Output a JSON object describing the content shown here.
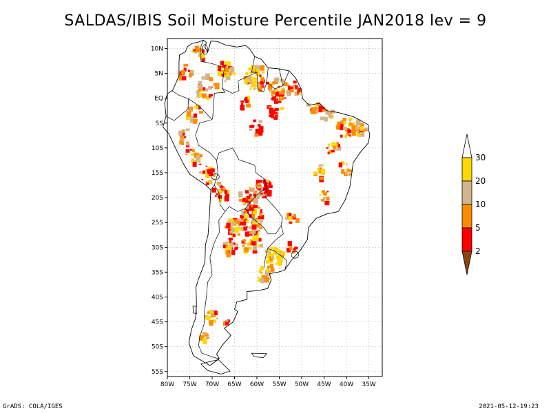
{
  "title": "SALDAS/IBIS Soil Moisture Percentile JAN2018 lev = 9",
  "footer": {
    "left": "GrADS: COLA/IGES",
    "right": "2021-05-12-19:23"
  },
  "map": {
    "lon_range": [
      -80,
      -32
    ],
    "lat_range": [
      -56,
      12
    ],
    "lon_ticks": [
      {
        "v": -80,
        "label": "80W"
      },
      {
        "v": -75,
        "label": "75W"
      },
      {
        "v": -70,
        "label": "70W"
      },
      {
        "v": -65,
        "label": "65W"
      },
      {
        "v": -60,
        "label": "60W"
      },
      {
        "v": -55,
        "label": "55W"
      },
      {
        "v": -50,
        "label": "50W"
      },
      {
        "v": -45,
        "label": "45W"
      },
      {
        "v": -40,
        "label": "40W"
      },
      {
        "v": -35,
        "label": "35W"
      }
    ],
    "lat_ticks": [
      {
        "v": 10,
        "label": "10N"
      },
      {
        "v": 5,
        "label": "5N"
      },
      {
        "v": 0,
        "label": "EQ"
      },
      {
        "v": -5,
        "label": "5S"
      },
      {
        "v": -10,
        "label": "10S"
      },
      {
        "v": -15,
        "label": "15S"
      },
      {
        "v": -20,
        "label": "20S"
      },
      {
        "v": -25,
        "label": "25S"
      },
      {
        "v": -30,
        "label": "30S"
      },
      {
        "v": -35,
        "label": "35S"
      },
      {
        "v": -40,
        "label": "40S"
      },
      {
        "v": -45,
        "label": "45S"
      },
      {
        "v": -50,
        "label": "50S"
      },
      {
        "v": -55,
        "label": "55S"
      }
    ],
    "grid": true,
    "coastline": [
      [
        -77.3,
        8.7
      ],
      [
        -76,
        9.3
      ],
      [
        -75.5,
        10.4
      ],
      [
        -74.5,
        11
      ],
      [
        -73,
        11.3
      ],
      [
        -71.9,
        11.7
      ],
      [
        -71.3,
        11.2
      ],
      [
        -71.6,
        10.3
      ],
      [
        -71,
        9.2
      ],
      [
        -70.3,
        11.5
      ],
      [
        -68.8,
        11.4
      ],
      [
        -67,
        10.7
      ],
      [
        -64.5,
        10.3
      ],
      [
        -62.5,
        10.6
      ],
      [
        -61.6,
        9.9
      ],
      [
        -60.5,
        8.4
      ],
      [
        -59,
        7.8
      ],
      [
        -57.5,
        6.1
      ],
      [
        -55,
        5.9
      ],
      [
        -52.8,
        5.5
      ],
      [
        -51.5,
        4.2
      ],
      [
        -51,
        3.5
      ],
      [
        -50.1,
        1.8
      ],
      [
        -49.8,
        -0.1
      ],
      [
        -48.3,
        -1.4
      ],
      [
        -46,
        -1
      ],
      [
        -44.4,
        -2.5
      ],
      [
        -41.8,
        -2.9
      ],
      [
        -38.5,
        -3.7
      ],
      [
        -35.2,
        -5.3
      ],
      [
        -34.8,
        -7.5
      ],
      [
        -35.1,
        -9
      ],
      [
        -37,
        -11
      ],
      [
        -38.5,
        -13
      ],
      [
        -39.2,
        -17.7
      ],
      [
        -40.3,
        -20.5
      ],
      [
        -41.8,
        -22.8
      ],
      [
        -44.5,
        -23.3
      ],
      [
        -46.8,
        -24.2
      ],
      [
        -48.5,
        -26
      ],
      [
        -48.7,
        -28.4
      ],
      [
        -50.3,
        -30.6
      ],
      [
        -52.3,
        -32.6
      ],
      [
        -53.8,
        -34.6
      ],
      [
        -55.3,
        -35
      ],
      [
        -57.2,
        -35.3
      ],
      [
        -56.8,
        -36.6
      ],
      [
        -57.6,
        -38.3
      ],
      [
        -59.6,
        -38.7
      ],
      [
        -62.2,
        -38.9
      ],
      [
        -62.2,
        -40.5
      ],
      [
        -64.5,
        -41
      ],
      [
        -65,
        -42.5
      ],
      [
        -64.3,
        -42.9
      ],
      [
        -65.3,
        -45
      ],
      [
        -67.3,
        -46.3
      ],
      [
        -65.8,
        -47.7
      ],
      [
        -67.8,
        -49.8
      ],
      [
        -69,
        -51.5
      ],
      [
        -68.4,
        -52.4
      ],
      [
        -70.5,
        -53.8
      ],
      [
        -74.2,
        -51.8
      ],
      [
        -75.2,
        -49.2
      ],
      [
        -74.6,
        -46.5
      ],
      [
        -73.7,
        -44.3
      ],
      [
        -73.5,
        -41.5
      ],
      [
        -73.6,
        -38
      ],
      [
        -73,
        -36.3
      ],
      [
        -71.6,
        -33
      ],
      [
        -71.5,
        -29.5
      ],
      [
        -70.9,
        -27.5
      ],
      [
        -70.6,
        -23.5
      ],
      [
        -70.3,
        -18.5
      ],
      [
        -71.4,
        -17.5
      ],
      [
        -75,
        -15.3
      ],
      [
        -76.3,
        -13.4
      ],
      [
        -77.2,
        -11.8
      ],
      [
        -78.2,
        -10
      ],
      [
        -79.7,
        -7.1
      ],
      [
        -81,
        -5.8
      ],
      [
        -80.3,
        -3.6
      ],
      [
        -80.6,
        -1
      ],
      [
        -80,
        0.9
      ],
      [
        -78.8,
        1.6
      ],
      [
        -77.4,
        4.5
      ],
      [
        -77.4,
        7.2
      ],
      [
        -77.3,
        8.7
      ]
    ],
    "borders": [
      [
        [
          -60.5,
          8.4
        ],
        [
          -61.2,
          5.2
        ],
        [
          -60,
          5.2
        ],
        [
          -62.5,
          4.2
        ],
        [
          -64.2,
          3.5
        ],
        [
          -64,
          1.5
        ],
        [
          -65.5,
          1
        ],
        [
          -67.8,
          2
        ],
        [
          -67.3,
          6.2
        ],
        [
          -70.2,
          7
        ],
        [
          -72.5,
          7.4
        ],
        [
          -72.5,
          10.5
        ],
        [
          -71.9,
          11.7
        ]
      ],
      [
        [
          -57.5,
          6.1
        ],
        [
          -57.8,
          3.2
        ],
        [
          -58.5,
          1.3
        ],
        [
          -59.8,
          1.8
        ],
        [
          -60,
          5.2
        ]
      ],
      [
        [
          -55,
          5.9
        ],
        [
          -54.2,
          2.5
        ],
        [
          -56,
          1.9
        ],
        [
          -57.8,
          3.2
        ]
      ],
      [
        [
          -52.8,
          5.5
        ],
        [
          -54.2,
          2.5
        ]
      ],
      [
        [
          -67.8,
          2
        ],
        [
          -67.1,
          1.2
        ],
        [
          -69.5,
          1
        ],
        [
          -69.9,
          -4.2
        ]
      ],
      [
        [
          -79,
          1.5
        ],
        [
          -77.4,
          0.6
        ],
        [
          -75.3,
          -0.1
        ],
        [
          -75.4,
          -2.2
        ],
        [
          -78.5,
          -4.5
        ],
        [
          -80.3,
          -3.6
        ]
      ],
      [
        [
          -75.3,
          -0.1
        ],
        [
          -73.5,
          -1.2
        ],
        [
          -72,
          -2.4
        ],
        [
          -70,
          -4.3
        ],
        [
          -72.8,
          -5
        ],
        [
          -73.7,
          -7.4
        ],
        [
          -73,
          -9.5
        ],
        [
          -70.5,
          -11
        ],
        [
          -69,
          -12.5
        ],
        [
          -68.7,
          -15
        ],
        [
          -69.5,
          -17.5
        ],
        [
          -70.3,
          -18.5
        ]
      ],
      [
        [
          -69.5,
          -17.5
        ],
        [
          -68.5,
          -19
        ],
        [
          -68.2,
          -21.5
        ],
        [
          -67.1,
          -22.8
        ],
        [
          -66.2,
          -21.8
        ],
        [
          -64.3,
          -22.8
        ],
        [
          -62.6,
          -22.2
        ],
        [
          -60,
          -19.4
        ],
        [
          -57.8,
          -18
        ],
        [
          -58.3,
          -16.3
        ],
        [
          -60.2,
          -15
        ],
        [
          -60.5,
          -13.5
        ],
        [
          -62,
          -13
        ],
        [
          -64,
          -12.4
        ],
        [
          -65.4,
          -10
        ],
        [
          -68.5,
          -11
        ],
        [
          -69,
          -12.5
        ]
      ],
      [
        [
          -67.1,
          -22.8
        ],
        [
          -68.5,
          -24.5
        ],
        [
          -68.4,
          -27
        ],
        [
          -69.5,
          -29
        ],
        [
          -70.5,
          -32
        ],
        [
          -70,
          -35.5
        ],
        [
          -71,
          -37
        ],
        [
          -71.3,
          -40
        ],
        [
          -71.7,
          -43
        ],
        [
          -71.8,
          -45.5
        ],
        [
          -72.8,
          -48
        ],
        [
          -73,
          -49.8
        ],
        [
          -72.3,
          -51.3
        ],
        [
          -69.5,
          -52.2
        ],
        [
          -68.4,
          -52.4
        ]
      ],
      [
        [
          -62.6,
          -22.2
        ],
        [
          -61.8,
          -23.5
        ],
        [
          -58.5,
          -26
        ],
        [
          -57.5,
          -27.3
        ],
        [
          -55.8,
          -27.3
        ],
        [
          -54.6,
          -25.6
        ],
        [
          -54.3,
          -24
        ],
        [
          -55.5,
          -22.5
        ],
        [
          -58,
          -20
        ],
        [
          -57.8,
          -18
        ]
      ],
      [
        [
          -54.6,
          -25.6
        ],
        [
          -54.1,
          -27.3
        ],
        [
          -55.8,
          -28.5
        ],
        [
          -57.6,
          -30.2
        ],
        [
          -56,
          -30.8
        ],
        [
          -53.5,
          -32.5
        ],
        [
          -53.5,
          -33.7
        ],
        [
          -53.8,
          -34.6
        ]
      ],
      [
        [
          -57.6,
          -30.2
        ],
        [
          -58.3,
          -33
        ],
        [
          -58.4,
          -34.1
        ]
      ]
    ],
    "lakes": [
      {
        "lon": -69.3,
        "lat": -15.8,
        "rx": 0.9,
        "ry": 0.6
      },
      {
        "lon": -71.6,
        "lat": 9.8,
        "rx": 0.6,
        "ry": 1.0
      },
      {
        "lon": -51.5,
        "lat": -31.5,
        "rx": 0.8,
        "ry": 0.7
      }
    ],
    "islands": [
      [
        [
          -68.6,
          -52.6
        ],
        [
          -66,
          -54.9
        ],
        [
          -68,
          -55.5
        ],
        [
          -71,
          -54.8
        ],
        [
          -72.5,
          -53.5
        ],
        [
          -70.5,
          -53
        ],
        [
          -68.6,
          -52.6
        ]
      ],
      [
        [
          -61.2,
          -51.3
        ],
        [
          -57.8,
          -51.4
        ],
        [
          -58.6,
          -52.2
        ],
        [
          -60.6,
          -52
        ],
        [
          -61.2,
          -51.3
        ]
      ],
      [
        [
          -74.3,
          -41.8
        ],
        [
          -73.6,
          -41.9
        ],
        [
          -73.5,
          -43.4
        ],
        [
          -74.2,
          -43.2
        ],
        [
          -74.3,
          -41.8
        ]
      ]
    ],
    "percentile_clusters": [
      {
        "lon": -60,
        "lat": 4,
        "r": 2.6,
        "n": 45,
        "w": [
          0.05,
          0.15,
          0.3,
          0.5
        ]
      },
      {
        "lon": -55,
        "lat": 1.5,
        "r": 2.5,
        "n": 45,
        "w": [
          0.12,
          0.4,
          0.7,
          0.9
        ]
      },
      {
        "lon": -51,
        "lat": 2,
        "r": 1.5,
        "n": 20,
        "w": [
          0.1,
          0.4,
          0.6,
          0.8
        ]
      },
      {
        "lon": -47,
        "lat": -1.5,
        "r": 1.5,
        "n": 25,
        "w": [
          0.1,
          0.45,
          0.7,
          0.9
        ]
      },
      {
        "lon": -44.5,
        "lat": -3,
        "r": 1.5,
        "n": 18,
        "w": [
          0.1,
          0.3,
          0.5,
          0.8
        ]
      },
      {
        "lon": -67,
        "lat": 5.5,
        "r": 2.2,
        "n": 30,
        "w": [
          0.05,
          0.15,
          0.3,
          0.55
        ]
      },
      {
        "lon": -71,
        "lat": 2,
        "r": 2.5,
        "n": 25,
        "w": [
          0.05,
          0.2,
          0.6,
          0.9
        ]
      },
      {
        "lon": -76,
        "lat": 5,
        "r": 1.6,
        "n": 15,
        "w": [
          0.05,
          0.2,
          0.6,
          0.9
        ]
      },
      {
        "lon": -73,
        "lat": 9,
        "r": 1.6,
        "n": 15,
        "w": [
          0.05,
          0.2,
          0.55,
          0.85
        ]
      },
      {
        "lon": -62,
        "lat": -1.5,
        "r": 1.6,
        "n": 12,
        "w": [
          0.3,
          0.6,
          0.8,
          0.9
        ]
      },
      {
        "lon": -56,
        "lat": -2.5,
        "r": 1.8,
        "n": 15,
        "w": [
          0.25,
          0.55,
          0.75,
          0.9
        ]
      },
      {
        "lon": -60,
        "lat": -6,
        "r": 1.5,
        "n": 10,
        "w": [
          0.3,
          0.6,
          0.8,
          0.9
        ]
      },
      {
        "lon": -74,
        "lat": -3,
        "r": 1.8,
        "n": 16,
        "w": [
          0.05,
          0.15,
          0.5,
          0.85
        ]
      },
      {
        "lon": -76,
        "lat": -8,
        "r": 1.6,
        "n": 16,
        "w": [
          0.05,
          0.2,
          0.55,
          0.85
        ]
      },
      {
        "lon": -74,
        "lat": -12,
        "r": 2.0,
        "n": 20,
        "w": [
          0.1,
          0.25,
          0.55,
          0.8
        ]
      },
      {
        "lon": -71,
        "lat": -15.5,
        "r": 1.8,
        "n": 20,
        "w": [
          0.15,
          0.35,
          0.6,
          0.8
        ]
      },
      {
        "lon": -68,
        "lat": -19,
        "r": 1.8,
        "n": 20,
        "w": [
          0.2,
          0.45,
          0.7,
          0.9
        ]
      },
      {
        "lon": -58.5,
        "lat": -18,
        "r": 1.8,
        "n": 35,
        "w": [
          0.3,
          0.6,
          0.8,
          0.9
        ]
      },
      {
        "lon": -62,
        "lat": -20,
        "r": 2.2,
        "n": 35,
        "w": [
          0.1,
          0.3,
          0.6,
          0.8
        ]
      },
      {
        "lon": -61,
        "lat": -24.5,
        "r": 2.8,
        "n": 55,
        "w": [
          0.08,
          0.25,
          0.6,
          0.8
        ]
      },
      {
        "lon": -65,
        "lat": -26,
        "r": 1.8,
        "n": 25,
        "w": [
          0.08,
          0.2,
          0.55,
          0.8
        ]
      },
      {
        "lon": -66,
        "lat": -30,
        "r": 1.6,
        "n": 20,
        "w": [
          0.25,
          0.45,
          0.65,
          0.85
        ]
      },
      {
        "lon": -61,
        "lat": -29,
        "r": 2.2,
        "n": 25,
        "w": [
          0.05,
          0.2,
          0.5,
          0.7
        ]
      },
      {
        "lon": -56,
        "lat": -32,
        "r": 2.0,
        "n": 40,
        "w": [
          0.0,
          0.05,
          0.15,
          0.3
        ]
      },
      {
        "lon": -58,
        "lat": -35.5,
        "r": 1.8,
        "n": 25,
        "w": [
          0.0,
          0.05,
          0.15,
          0.3
        ]
      },
      {
        "lon": -70,
        "lat": -44,
        "r": 1.3,
        "n": 14,
        "w": [
          0.05,
          0.2,
          0.4,
          0.7
        ]
      },
      {
        "lon": -67,
        "lat": -45.5,
        "r": 1.0,
        "n": 6,
        "w": [
          0.3,
          0.6,
          0.8,
          0.9
        ]
      },
      {
        "lon": -71.5,
        "lat": -48,
        "r": 1.0,
        "n": 10,
        "w": [
          0.0,
          0.1,
          0.4,
          0.7
        ]
      },
      {
        "lon": -40,
        "lat": -6,
        "r": 2.0,
        "n": 30,
        "w": [
          0.05,
          0.2,
          0.6,
          0.85
        ]
      },
      {
        "lon": -37,
        "lat": -6,
        "r": 1.5,
        "n": 22,
        "w": [
          0.05,
          0.15,
          0.5,
          0.8
        ]
      },
      {
        "lon": -43,
        "lat": -10,
        "r": 1.5,
        "n": 15,
        "w": [
          0.15,
          0.35,
          0.6,
          0.85
        ]
      },
      {
        "lon": -46,
        "lat": -15,
        "r": 1.5,
        "n": 10,
        "w": [
          0.05,
          0.2,
          0.6,
          0.85
        ]
      },
      {
        "lon": -40,
        "lat": -14,
        "r": 1.5,
        "n": 12,
        "w": [
          0.05,
          0.2,
          0.6,
          0.85
        ]
      },
      {
        "lon": -45,
        "lat": -20,
        "r": 1.5,
        "n": 10,
        "w": [
          0.05,
          0.2,
          0.6,
          0.85
        ]
      },
      {
        "lon": -52,
        "lat": -24,
        "r": 1.5,
        "n": 8,
        "w": [
          0.1,
          0.3,
          0.6,
          0.85
        ]
      },
      {
        "lon": -52,
        "lat": -30,
        "r": 1.3,
        "n": 8,
        "w": [
          0.05,
          0.2,
          0.6,
          0.85
        ]
      }
    ]
  },
  "colorbar": {
    "labels": [
      "2",
      "5",
      "10",
      "20",
      "30"
    ],
    "colors": {
      "below_2": "#8b4513",
      "2_5": "#ff0000",
      "5_10": "#ff8c00",
      "10_20": "#d2b48c",
      "20_30": "#ffd700",
      "above_30": "#ffffff"
    }
  }
}
